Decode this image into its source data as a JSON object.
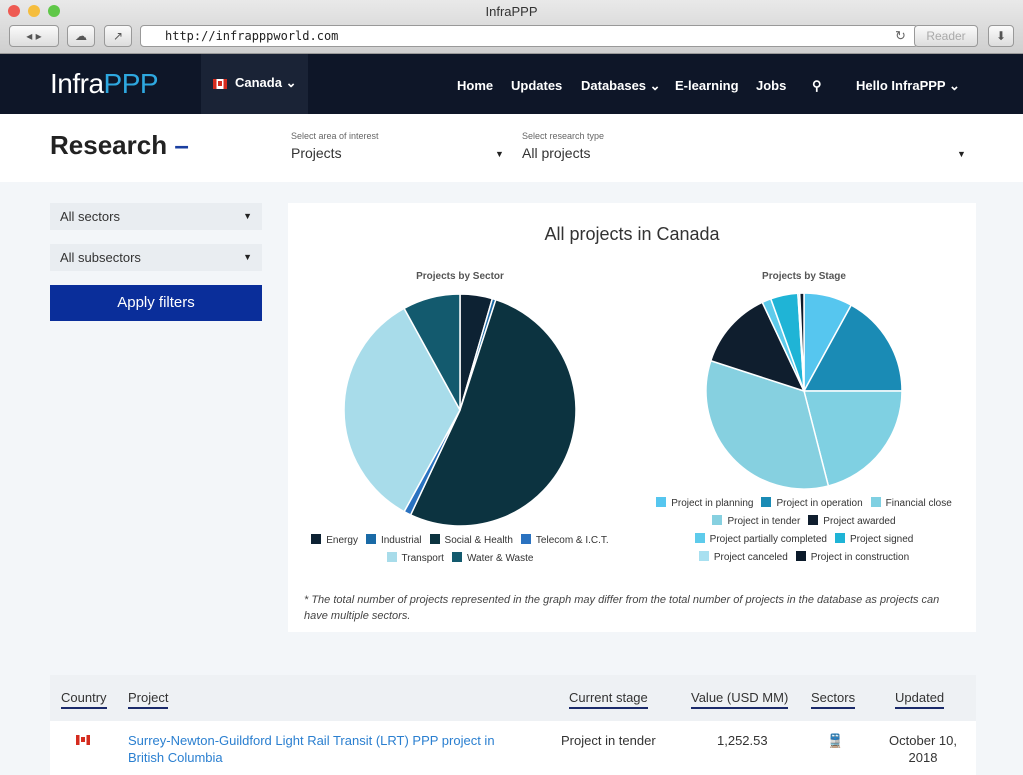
{
  "browser": {
    "title": "InfraPPP",
    "url": "http://infrapppworld.com",
    "reader_label": "Reader"
  },
  "nav": {
    "logo_a": "Infra",
    "logo_b": "PPP",
    "country": "Canada",
    "items": [
      "Home",
      "Updates",
      "Databases",
      "E-learning",
      "Jobs"
    ],
    "user": "Hello InfraPPP"
  },
  "research": {
    "title": "Research",
    "area_label": "Select area of interest",
    "area_value": "Projects",
    "type_label": "Select research type",
    "type_value": "All projects"
  },
  "filters": {
    "sectors": "All sectors",
    "subsectors": "All subsectors",
    "apply": "Apply filters"
  },
  "card": {
    "title": "All projects in Canada",
    "note": "* The total number of projects represented in the graph may differ from the total number of projects in the database as projects can have multiple sectors."
  },
  "chart_data": [
    {
      "type": "pie",
      "title": "Projects by Sector",
      "unit": "percent (estimated)",
      "legend": "bottom",
      "slices": [
        {
          "label": "Energy",
          "value": 4.5,
          "color": "#0d2233"
        },
        {
          "label": "Industrial",
          "value": 0.5,
          "color": "#1a6aa6"
        },
        {
          "label": "Social & Health",
          "value": 52,
          "color": "#0c3340"
        },
        {
          "label": "Telecom & I.C.T.",
          "value": 1,
          "color": "#2a72c0"
        },
        {
          "label": "Transport",
          "value": 34,
          "color": "#a8dcea"
        },
        {
          "label": "Water & Waste",
          "value": 8,
          "color": "#135a6e"
        }
      ]
    },
    {
      "type": "pie",
      "title": "Projects by Stage",
      "unit": "percent (estimated)",
      "legend": "bottom",
      "slices": [
        {
          "label": "Project in planning",
          "value": 8,
          "color": "#56c6ef"
        },
        {
          "label": "Project in operation",
          "value": 17,
          "color": "#1a8bb5"
        },
        {
          "label": "Financial close",
          "value": 21,
          "color": "#7fd0e2"
        },
        {
          "label": "Project in tender",
          "value": 34,
          "color": "#86d0e0"
        },
        {
          "label": "Project awarded",
          "value": 13,
          "color": "#0f1e2e"
        },
        {
          "label": "Project partially completed",
          "value": 1.5,
          "color": "#5ecbeb"
        },
        {
          "label": "Project signed",
          "value": 4.5,
          "color": "#1fb4d6"
        },
        {
          "label": "Project canceled",
          "value": 0.3,
          "color": "#a8e0f0"
        },
        {
          "label": "Project in construction",
          "value": 0.7,
          "color": "#0b1a2a"
        }
      ]
    }
  ],
  "table": {
    "headers": [
      "Country",
      "Project",
      "Current stage",
      "Value (USD MM)",
      "Sectors",
      "Updated"
    ],
    "rows": [
      {
        "project": "Surrey-Newton-Guildford Light Rail Transit (LRT) PPP project in British Columbia",
        "stage": "Project in tender",
        "value": "1,252.53",
        "sector_icon": "train-icon",
        "updated": "October 10, 2018"
      }
    ]
  }
}
